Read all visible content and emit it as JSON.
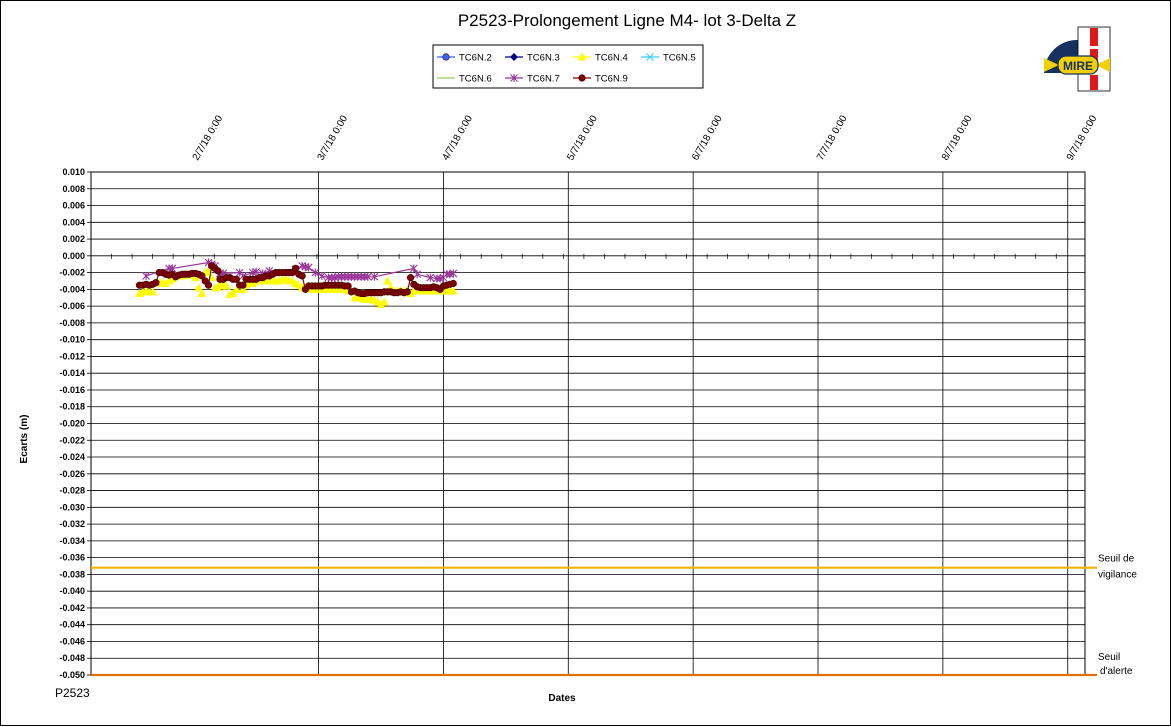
{
  "chart_data": {
    "type": "line",
    "title": "P2523-Prolongement  Ligne  M4- lot 3-Delta Z",
    "xlabel": "Dates",
    "ylabel": "Ecarts (m)",
    "footer": "P2523",
    "logo_text": "MIRE",
    "ylim": [
      -0.05,
      0.01
    ],
    "ytick_step": 0.002,
    "y_ticks": [
      "0.010",
      "0.008",
      "0.006",
      "0.004",
      "0.002",
      "0.000",
      "-0.002",
      "-0.004",
      "-0.006",
      "-0.008",
      "-0.010",
      "-0.012",
      "-0.014",
      "-0.016",
      "-0.018",
      "-0.020",
      "-0.022",
      "-0.024",
      "-0.026",
      "-0.028",
      "-0.030",
      "-0.032",
      "-0.034",
      "-0.036",
      "-0.038",
      "-0.040",
      "-0.042",
      "-0.044",
      "-0.046",
      "-0.048",
      "-0.050"
    ],
    "x_ticks": [
      "2/7/18 0:00",
      "3/7/18 0:00",
      "4/7/18 0:00",
      "5/7/18 0:00",
      "6/7/18 0:00",
      "7/7/18 0:00",
      "8/7/18 0:00",
      "9/7/18 0:00",
      "10/7/18 0:00"
    ],
    "grid": true,
    "legend_position": "top-center",
    "legend": [
      {
        "name": "TC6N.2",
        "color": "#3366ff",
        "marker": "circle"
      },
      {
        "name": "TC6N.3",
        "color": "#000080",
        "marker": "diamond"
      },
      {
        "name": "TC6N.4",
        "color": "#ffff00",
        "marker": "triangle"
      },
      {
        "name": "TC6N.5",
        "color": "#33ccff",
        "marker": "x"
      },
      {
        "name": "TC6N.6",
        "color": "#99cc66",
        "marker": "none"
      },
      {
        "name": "TC6N.7",
        "color": "#993399",
        "marker": "star"
      },
      {
        "name": "TC6N.9",
        "color": "#800000",
        "marker": "circle"
      }
    ],
    "thresholds": [
      {
        "label1": "Seuil de",
        "label2": "vigilance",
        "y": -0.0372,
        "color": "#f0b400"
      },
      {
        "label1": "Seuil",
        "label2": "d'alerte",
        "y": -0.05,
        "color": "#e07000"
      }
    ],
    "series": [
      {
        "name": "TC6N.4",
        "color": "#ffff00",
        "marker": "triangle",
        "x": [
          -13.2,
          -12.4,
          -11.6,
          -10.8,
          -10.0,
          -9.2,
          -8.4,
          -7.6,
          -6.8,
          -6.0,
          -5.2,
          -4.4,
          -3.6,
          -2.8,
          -2.0,
          -1.2,
          -0.4,
          0.4,
          1.2,
          2.0,
          2.8,
          3.6,
          4.4,
          5.2,
          5.9,
          6.4,
          7.2,
          8.0,
          8.8,
          9.6,
          10.4,
          11.2,
          12.0,
          12.8,
          13.6,
          14.4,
          15.2,
          16.0,
          16.8,
          17.6,
          18.4,
          19.2,
          20.0,
          20.8,
          21.6,
          22.4,
          23.2,
          24.0,
          24.8,
          25.6,
          26.4,
          27.2,
          28.0,
          28.8,
          29.6,
          30.4,
          31.2,
          32.0,
          32.8,
          33.6,
          34.4,
          35.2,
          36.0,
          36.8,
          37.6,
          38.4,
          39.2,
          40.0,
          40.8,
          41.6,
          42.4,
          43.2,
          44.0,
          44.8,
          45.6,
          46.4,
          47.2,
          48.0,
          48.8,
          49.6,
          50.4,
          51.2,
          52.0,
          52.8,
          53.6,
          54.4,
          55.2,
          56.0,
          56.8,
          57.6,
          58.4,
          59.2,
          60.0,
          60.8,
          61.6,
          62.4,
          63.2
        ],
        "y": [
          -0.0045,
          -0.0043,
          -0.0042,
          -0.0043,
          -0.0043,
          -0.0033,
          -0.0032,
          -0.0032,
          -0.0033,
          -0.003,
          -0.0028,
          -0.0025,
          -0.0024,
          -0.0024,
          -0.0022,
          -0.0023,
          -0.0022,
          -0.0026,
          -0.0038,
          -0.0045,
          -0.002,
          -0.0018,
          -0.0026,
          -0.0038,
          -0.0038,
          -0.0035,
          -0.0035,
          -0.0036,
          -0.0046,
          -0.0045,
          -0.004,
          -0.0035,
          -0.004,
          -0.0035,
          -0.0033,
          -0.0033,
          -0.003,
          -0.003,
          -0.003,
          -0.003,
          -0.003,
          -0.003,
          -0.003,
          -0.003,
          -0.0028,
          -0.0028,
          -0.003,
          -0.003,
          -0.0033,
          -0.0035,
          -0.0038,
          -0.0038,
          -0.0038,
          -0.004,
          -0.004,
          -0.004,
          -0.004,
          -0.004,
          -0.004,
          -0.004,
          -0.004,
          -0.004,
          -0.004,
          -0.004,
          -0.0042,
          -0.0042,
          -0.005,
          -0.005,
          -0.005,
          -0.0052,
          -0.0052,
          -0.0052,
          -0.0053,
          -0.0055,
          -0.0058,
          -0.0055,
          -0.003,
          -0.0038,
          -0.0042,
          -0.0042,
          -0.0042,
          -0.0042,
          -0.0042,
          -0.0045,
          -0.0042,
          -0.0042,
          -0.0042,
          -0.0042,
          -0.0042,
          -0.0042,
          -0.0042,
          -0.0042,
          -0.0042,
          -0.0042,
          -0.0042,
          -0.0042,
          -0.0042
        ]
      },
      {
        "name": "TC6N.7",
        "color": "#993399",
        "marker": "star",
        "x": [
          -11.6,
          -6.0,
          -5.2,
          3.6,
          4.4,
          5.2,
          6.4,
          7.2,
          11.2,
          12.0,
          14.4,
          15.2,
          16.8,
          18.4,
          24.8,
          26.4,
          27.2,
          28.0,
          29.6,
          31.2,
          32.8,
          33.6,
          34.4,
          35.2,
          36.0,
          36.8,
          37.6,
          38.4,
          39.2,
          40.0,
          40.8,
          41.6,
          42.4,
          44.0,
          53.6,
          54.4,
          57.6,
          59.2,
          60.0,
          60.8,
          61.6,
          62.4,
          63.2
        ],
        "y": [
          -0.0024,
          -0.0015,
          -0.0015,
          -0.0008,
          -0.001,
          -0.0012,
          -0.0021,
          -0.0021,
          -0.002,
          -0.0024,
          -0.002,
          -0.0019,
          -0.0021,
          -0.0018,
          -0.0016,
          -0.0012,
          -0.0013,
          -0.0014,
          -0.002,
          -0.0024,
          -0.0026,
          -0.0026,
          -0.0026,
          -0.0025,
          -0.0025,
          -0.0025,
          -0.0025,
          -0.0025,
          -0.0025,
          -0.0025,
          -0.0025,
          -0.0025,
          -0.0025,
          -0.0025,
          -0.0015,
          -0.0022,
          -0.0026,
          -0.0027,
          -0.0027,
          -0.0026,
          -0.0022,
          -0.0022,
          -0.0021
        ]
      },
      {
        "name": "TC6N.9",
        "color": "#800000",
        "marker": "circle",
        "x": [
          -13.2,
          -12.4,
          -11.6,
          -10.8,
          -10.0,
          -9.2,
          -8.4,
          -7.6,
          -6.8,
          -6.0,
          -5.2,
          -4.4,
          -3.6,
          -2.8,
          -2.0,
          -1.2,
          -0.4,
          0.4,
          1.2,
          2.0,
          2.8,
          3.6,
          4.4,
          5.2,
          5.9,
          6.4,
          7.2,
          8.0,
          8.8,
          9.6,
          10.4,
          11.2,
          12.0,
          12.8,
          13.6,
          14.4,
          15.2,
          16.0,
          16.8,
          17.6,
          18.4,
          19.2,
          20.0,
          20.8,
          21.6,
          22.4,
          23.2,
          24.0,
          24.8,
          25.6,
          26.4,
          27.2,
          28.0,
          28.8,
          29.6,
          30.4,
          31.2,
          32.0,
          32.8,
          33.6,
          34.4,
          35.2,
          36.0,
          36.8,
          37.6,
          38.4,
          39.2,
          40.0,
          40.8,
          41.6,
          42.4,
          43.2,
          44.0,
          44.8,
          45.6,
          46.4,
          47.2,
          48.0,
          48.8,
          49.6,
          50.4,
          51.2,
          52.0,
          52.8,
          53.6,
          54.4,
          55.2,
          56.0,
          56.8,
          57.6,
          58.4,
          59.2,
          60.0,
          60.8,
          61.6,
          62.4,
          63.2
        ],
        "y": [
          -0.0035,
          -0.0035,
          -0.0034,
          -0.0035,
          -0.0034,
          -0.0032,
          -0.002,
          -0.002,
          -0.0022,
          -0.0023,
          -0.0022,
          -0.0025,
          -0.0023,
          -0.0022,
          -0.0022,
          -0.0022,
          -0.0021,
          -0.0021,
          -0.0022,
          -0.0024,
          -0.003,
          -0.0035,
          -0.0012,
          -0.0015,
          -0.0018,
          -0.0028,
          -0.0028,
          -0.0026,
          -0.0026,
          -0.0028,
          -0.0028,
          -0.0035,
          -0.0035,
          -0.0028,
          -0.0028,
          -0.0028,
          -0.0028,
          -0.0026,
          -0.0026,
          -0.0024,
          -0.0024,
          -0.0022,
          -0.002,
          -0.002,
          -0.002,
          -0.002,
          -0.002,
          -0.002,
          -0.0015,
          -0.0022,
          -0.0024,
          -0.004,
          -0.0036,
          -0.0036,
          -0.0036,
          -0.0036,
          -0.0036,
          -0.0035,
          -0.0035,
          -0.0035,
          -0.0035,
          -0.0035,
          -0.0035,
          -0.0036,
          -0.0036,
          -0.0043,
          -0.0042,
          -0.0044,
          -0.0045,
          -0.0045,
          -0.0044,
          -0.0044,
          -0.0044,
          -0.0044,
          -0.0044,
          -0.0043,
          -0.0043,
          -0.0043,
          -0.0044,
          -0.0044,
          -0.0043,
          -0.0044,
          -0.0043,
          -0.0026,
          -0.0034,
          -0.0037,
          -0.0038,
          -0.0038,
          -0.0038,
          -0.0038,
          -0.0037,
          -0.0038,
          -0.004,
          -0.0036,
          -0.0035,
          -0.0034,
          -0.0033
        ]
      }
    ]
  }
}
